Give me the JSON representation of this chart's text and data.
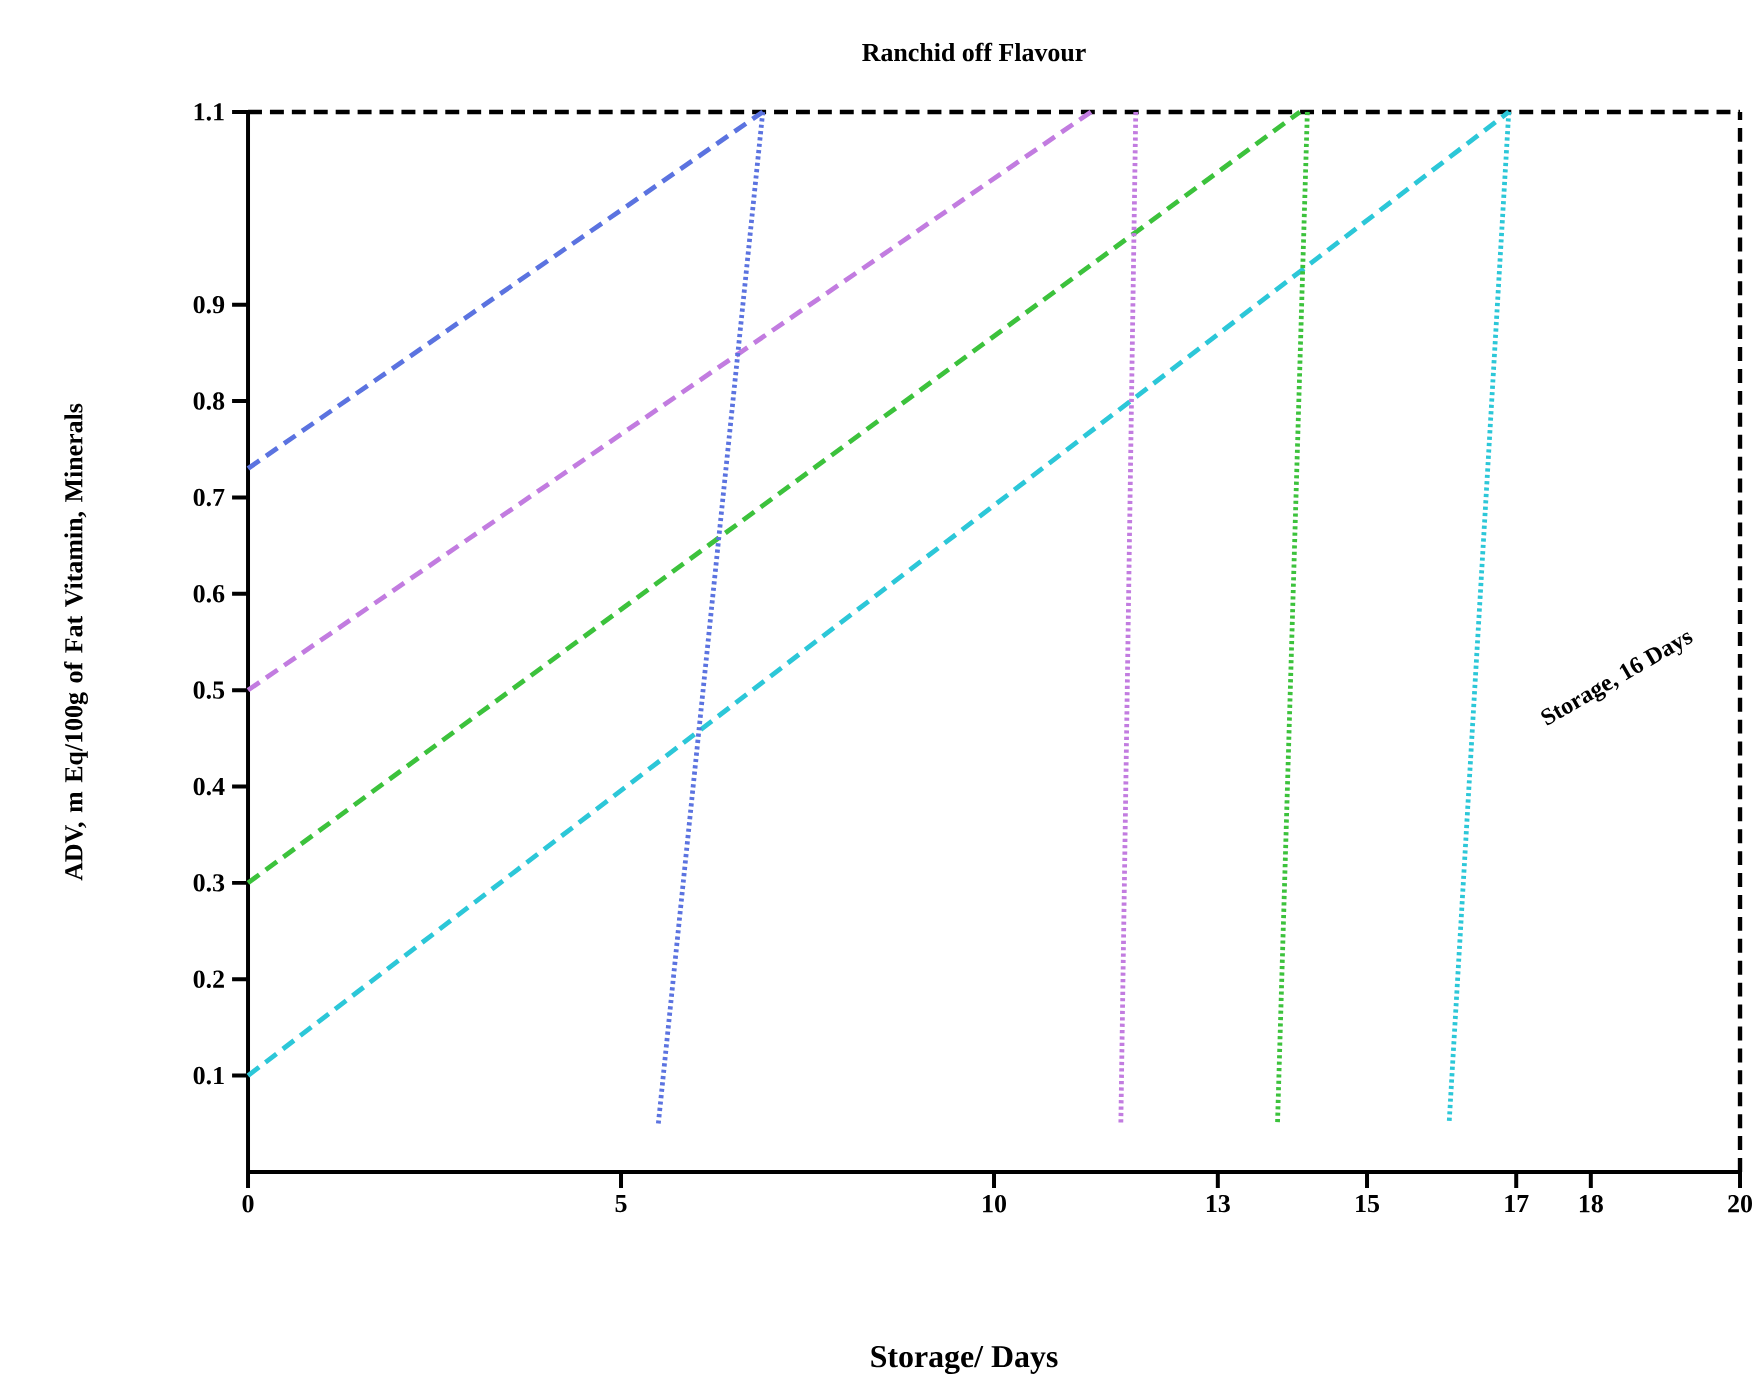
{
  "chart_data": {
    "type": "line",
    "title": "Ranchid off Flavour",
    "xlabel": "Storage/ Days",
    "ylabel": "ADV, m Eq/100g of Fat Vitamin, Minerals",
    "annotations": [
      "Storage, 16 Days"
    ],
    "xlim": [
      0,
      20
    ],
    "xticks": [
      0,
      5,
      10,
      13,
      15,
      17,
      18,
      20
    ],
    "ylim": [
      0,
      1.1
    ],
    "yticks": [
      0.1,
      0.2,
      0.3,
      0.4,
      0.5,
      0.6,
      0.7,
      0.8,
      0.9,
      1.1
    ],
    "marker": "none",
    "grid": false,
    "ref_lines": [
      {
        "axis": "y",
        "value": 1.1,
        "color": "#000000",
        "line_style": "dashed"
      },
      {
        "axis": "x",
        "value": 20,
        "color": "#000000",
        "line_style": "dashed"
      }
    ],
    "series": [
      {
        "color": "#5b73e0",
        "line_style": "dashed",
        "x": [
          0,
          6.9
        ],
        "values": [
          0.73,
          1.1
        ]
      },
      {
        "color": "#c27ce0",
        "line_style": "dashed",
        "x": [
          0,
          11.3
        ],
        "values": [
          0.5,
          1.1
        ]
      },
      {
        "color": "#3cc23c",
        "line_style": "dashed",
        "x": [
          0,
          14.1
        ],
        "values": [
          0.3,
          1.1
        ]
      },
      {
        "color": "#2cc7d8",
        "line_style": "dashed",
        "x": [
          0,
          16.9
        ],
        "values": [
          0.1,
          1.1
        ]
      },
      {
        "color": "#5b73e0",
        "line_style": "dotted",
        "x": [
          6.9,
          5.5
        ],
        "values": [
          1.1,
          0.05
        ]
      },
      {
        "color": "#c27ce0",
        "line_style": "dotted",
        "x": [
          11.9,
          11.7
        ],
        "values": [
          1.1,
          0.05
        ]
      },
      {
        "color": "#3cc23c",
        "line_style": "dotted",
        "x": [
          14.2,
          13.8
        ],
        "values": [
          1.1,
          0.05
        ]
      },
      {
        "color": "#2cc7d8",
        "line_style": "dotted",
        "x": [
          16.9,
          16.1
        ],
        "values": [
          1.1,
          0.05
        ]
      }
    ]
  }
}
